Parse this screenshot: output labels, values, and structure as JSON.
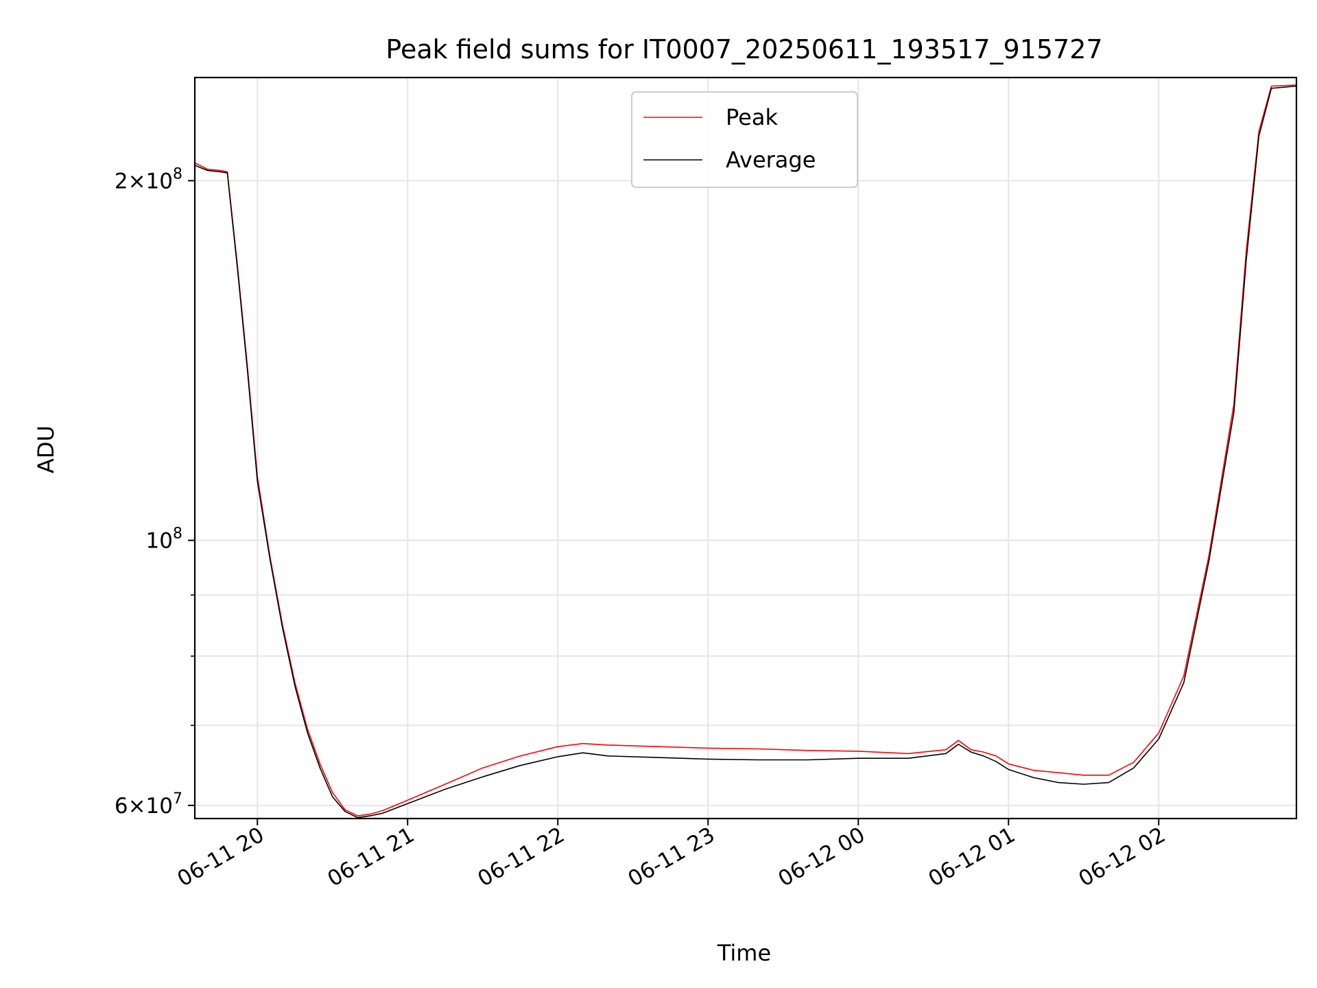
{
  "chart_data": {
    "type": "line",
    "title": "Peak field sums for IT0007_20250611_193517_915727",
    "xlabel": "Time",
    "ylabel": "ADU",
    "yscale": "log",
    "ylim": [
      58500000,
      244000000
    ],
    "xlim": [
      "2025-06-11 19:35",
      "2025-06-12 02:55"
    ],
    "grid": true,
    "legend": "top-center",
    "x_ticks": [
      {
        "t": "2025-06-11 20:00",
        "label": "06-11 20"
      },
      {
        "t": "2025-06-11 21:00",
        "label": "06-11 21"
      },
      {
        "t": "2025-06-11 22:00",
        "label": "06-11 22"
      },
      {
        "t": "2025-06-11 23:00",
        "label": "06-11 23"
      },
      {
        "t": "2025-06-12 00:00",
        "label": "06-12 00"
      },
      {
        "t": "2025-06-12 01:00",
        "label": "06-12 01"
      },
      {
        "t": "2025-06-12 02:00",
        "label": "06-12 02"
      }
    ],
    "y_ticks": [
      {
        "value": 60000000,
        "mantissa": "6",
        "exp": "7"
      },
      {
        "value": 100000000,
        "mantissa": "",
        "exp": "8"
      },
      {
        "value": 200000000,
        "mantissa": "2",
        "exp": "8"
      }
    ],
    "y_minor_ticks": [
      70000000,
      80000000,
      90000000
    ],
    "series": [
      {
        "name": "Peak",
        "color": "#ff0000",
        "x": [
          "2025-06-11 19:35",
          "2025-06-11 19:40",
          "2025-06-11 19:45",
          "2025-06-11 19:48",
          "2025-06-11 19:52",
          "2025-06-11 19:56",
          "2025-06-11 20:00",
          "2025-06-11 20:05",
          "2025-06-11 20:10",
          "2025-06-11 20:15",
          "2025-06-11 20:20",
          "2025-06-11 20:25",
          "2025-06-11 20:30",
          "2025-06-11 20:35",
          "2025-06-11 20:40",
          "2025-06-11 20:45",
          "2025-06-11 20:50",
          "2025-06-11 21:00",
          "2025-06-11 21:15",
          "2025-06-11 21:30",
          "2025-06-11 21:45",
          "2025-06-11 22:00",
          "2025-06-11 22:10",
          "2025-06-11 22:20",
          "2025-06-11 22:40",
          "2025-06-11 23:00",
          "2025-06-11 23:20",
          "2025-06-11 23:40",
          "2025-06-12 00:00",
          "2025-06-12 00:20",
          "2025-06-12 00:35",
          "2025-06-12 00:40",
          "2025-06-12 00:45",
          "2025-06-12 00:50",
          "2025-06-12 00:55",
          "2025-06-12 01:00",
          "2025-06-12 01:10",
          "2025-06-12 01:20",
          "2025-06-12 01:30",
          "2025-06-12 01:40",
          "2025-06-12 01:50",
          "2025-06-12 02:00",
          "2025-06-12 02:10",
          "2025-06-12 02:20",
          "2025-06-12 02:30",
          "2025-06-12 02:35",
          "2025-06-12 02:40",
          "2025-06-12 02:45",
          "2025-06-12 02:55"
        ],
        "y": [
          207000000,
          204500000,
          204000000,
          203500000,
          170000000,
          140000000,
          113000000,
          97000000,
          85000000,
          76000000,
          69500000,
          65000000,
          61500000,
          59500000,
          58800000,
          59000000,
          59400000,
          60600000,
          62500000,
          64500000,
          66000000,
          67200000,
          67600000,
          67400000,
          67200000,
          67000000,
          66900000,
          66700000,
          66600000,
          66300000,
          66800000,
          68000000,
          66800000,
          66500000,
          66000000,
          65000000,
          64200000,
          63900000,
          63600000,
          63600000,
          65200000,
          69000000,
          77000000,
          97000000,
          130000000,
          175000000,
          220000000,
          240000000,
          240500000
        ]
      },
      {
        "name": "Average",
        "color": "#000000",
        "x": [
          "2025-06-11 19:35",
          "2025-06-11 19:40",
          "2025-06-11 19:45",
          "2025-06-11 19:48",
          "2025-06-11 19:52",
          "2025-06-11 19:56",
          "2025-06-11 20:00",
          "2025-06-11 20:05",
          "2025-06-11 20:10",
          "2025-06-11 20:15",
          "2025-06-11 20:20",
          "2025-06-11 20:25",
          "2025-06-11 20:30",
          "2025-06-11 20:35",
          "2025-06-11 20:40",
          "2025-06-11 20:45",
          "2025-06-11 20:50",
          "2025-06-11 21:00",
          "2025-06-11 21:15",
          "2025-06-11 21:30",
          "2025-06-11 21:45",
          "2025-06-11 22:00",
          "2025-06-11 22:10",
          "2025-06-11 22:20",
          "2025-06-11 22:40",
          "2025-06-11 23:00",
          "2025-06-11 23:20",
          "2025-06-11 23:40",
          "2025-06-12 00:00",
          "2025-06-12 00:20",
          "2025-06-12 00:35",
          "2025-06-12 00:40",
          "2025-06-12 00:45",
          "2025-06-12 00:50",
          "2025-06-12 00:55",
          "2025-06-12 01:00",
          "2025-06-12 01:10",
          "2025-06-12 01:20",
          "2025-06-12 01:30",
          "2025-06-12 01:40",
          "2025-06-12 01:50",
          "2025-06-12 02:00",
          "2025-06-12 02:10",
          "2025-06-12 02:20",
          "2025-06-12 02:30",
          "2025-06-12 02:35",
          "2025-06-12 02:40",
          "2025-06-12 02:45",
          "2025-06-12 02:55"
        ],
        "y": [
          206000000,
          204000000,
          203500000,
          203000000,
          169000000,
          139000000,
          112000000,
          96500000,
          84500000,
          75500000,
          69000000,
          64500000,
          61000000,
          59300000,
          58600000,
          58800000,
          59100000,
          60200000,
          61900000,
          63400000,
          64800000,
          65900000,
          66400000,
          66000000,
          65800000,
          65600000,
          65500000,
          65500000,
          65700000,
          65700000,
          66300000,
          67500000,
          66500000,
          66000000,
          65300000,
          64300000,
          63300000,
          62700000,
          62500000,
          62700000,
          64500000,
          68200000,
          76000000,
          96000000,
          128000000,
          172000000,
          218000000,
          239000000,
          240000000
        ]
      }
    ]
  }
}
